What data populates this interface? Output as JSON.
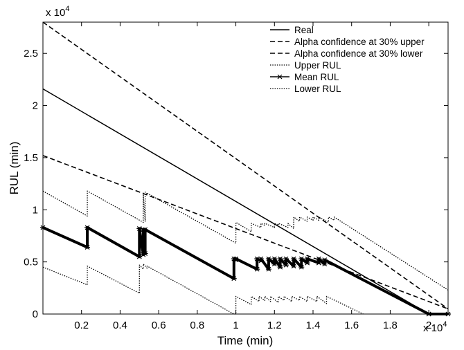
{
  "chart_data": {
    "type": "line",
    "title": "",
    "xlabel": "Time (min)",
    "ylabel": "RUL (min)",
    "x_multiplier_label": "x 10",
    "x_multiplier_exp": "4",
    "y_multiplier_label": "x 10",
    "y_multiplier_exp": "4",
    "xlim": [
      0,
      21000
    ],
    "ylim": [
      0,
      28000
    ],
    "xticks": [
      2000,
      4000,
      6000,
      8000,
      10000,
      12000,
      14000,
      16000,
      18000,
      20000
    ],
    "xtick_labels": [
      "0.2",
      "0.4",
      "0.6",
      "0.8",
      "1",
      "1.2",
      "1.4",
      "1.6",
      "1.8",
      "2"
    ],
    "yticks": [
      0,
      5000,
      10000,
      15000,
      20000,
      25000
    ],
    "ytick_labels": [
      "0",
      "0.5",
      "1",
      "1.5",
      "2",
      "2.5"
    ],
    "legend_position": "top-right",
    "grid": false,
    "series": [
      {
        "name": "Real",
        "style": "solid",
        "x": [
          0,
          20000
        ],
        "y": [
          21600,
          0
        ]
      },
      {
        "name": "Alpha confidence at 30% upper",
        "style": "dashed",
        "x": [
          0,
          21000
        ],
        "y": [
          28000,
          500
        ]
      },
      {
        "name": "Alpha confidence at 30% lower",
        "style": "dashed",
        "x": [
          0,
          21000
        ],
        "y": [
          15200,
          500
        ]
      },
      {
        "name": "Upper RUL",
        "style": "dotted",
        "x": [
          0,
          2300,
          2300,
          5200,
          5200,
          5300,
          5300,
          5400,
          5400,
          10000,
          10000,
          10800,
          10800,
          11300,
          11300,
          11500,
          11500,
          12000,
          12000,
          12200,
          12200,
          12700,
          12700,
          13000,
          13000,
          13300,
          13300,
          13700,
          13700,
          14000,
          14000,
          14300,
          14300,
          14800,
          14800,
          15100,
          15100,
          21000
        ],
        "y": [
          11800,
          9400,
          11800,
          8800,
          11600,
          8900,
          11700,
          11500,
          11600,
          6800,
          8800,
          7900,
          8700,
          8300,
          8700,
          8500,
          8700,
          8300,
          8700,
          8500,
          8700,
          8300,
          8700,
          8200,
          9300,
          8900,
          9300,
          8900,
          9300,
          9000,
          9300,
          9000,
          9300,
          8800,
          9300,
          9000,
          9300,
          2300
        ]
      },
      {
        "name": "Mean RUL",
        "style": "solid-star",
        "x": [
          0,
          2300,
          2300,
          5000,
          5000,
          5200,
          5200,
          5300,
          5300,
          9900,
          9900,
          10000,
          10000,
          11100,
          11100,
          11300,
          11300,
          11700,
          11700,
          12000,
          12000,
          12300,
          12300,
          12600,
          12600,
          13000,
          13000,
          13400,
          13400,
          13700,
          13700,
          14300,
          14300,
          14600,
          14600,
          20000,
          20000,
          21000
        ],
        "y": [
          8300,
          6400,
          8300,
          5500,
          8200,
          5700,
          8100,
          5800,
          8100,
          3400,
          5300,
          5200,
          5300,
          4300,
          5300,
          5100,
          5300,
          4300,
          5300,
          4800,
          5300,
          4500,
          5300,
          4700,
          5300,
          4600,
          5300,
          4500,
          5300,
          4900,
          5300,
          4900,
          5300,
          4800,
          5200,
          0,
          0,
          0
        ]
      },
      {
        "name": "Lower RUL",
        "style": "dotted",
        "x": [
          0,
          2300,
          2300,
          5000,
          5000,
          5200,
          5200,
          5400,
          5400,
          9900,
          9900,
          10000,
          10000,
          10800,
          10800,
          11200,
          11200,
          11500,
          11500,
          11800,
          11800,
          12200,
          12200,
          12500,
          12500,
          12900,
          12900,
          13300,
          13300,
          13700,
          13700,
          14200,
          14200,
          14700,
          14700,
          16600
        ],
        "y": [
          4500,
          2800,
          4600,
          2000,
          4700,
          4300,
          4800,
          4400,
          4600,
          0,
          0,
          0,
          1700,
          900,
          1700,
          1200,
          1700,
          1300,
          1700,
          1200,
          1700,
          1100,
          1700,
          1300,
          1700,
          1200,
          1700,
          1300,
          1700,
          1200,
          1700,
          1200,
          1700,
          1000,
          1700,
          0
        ]
      }
    ]
  }
}
